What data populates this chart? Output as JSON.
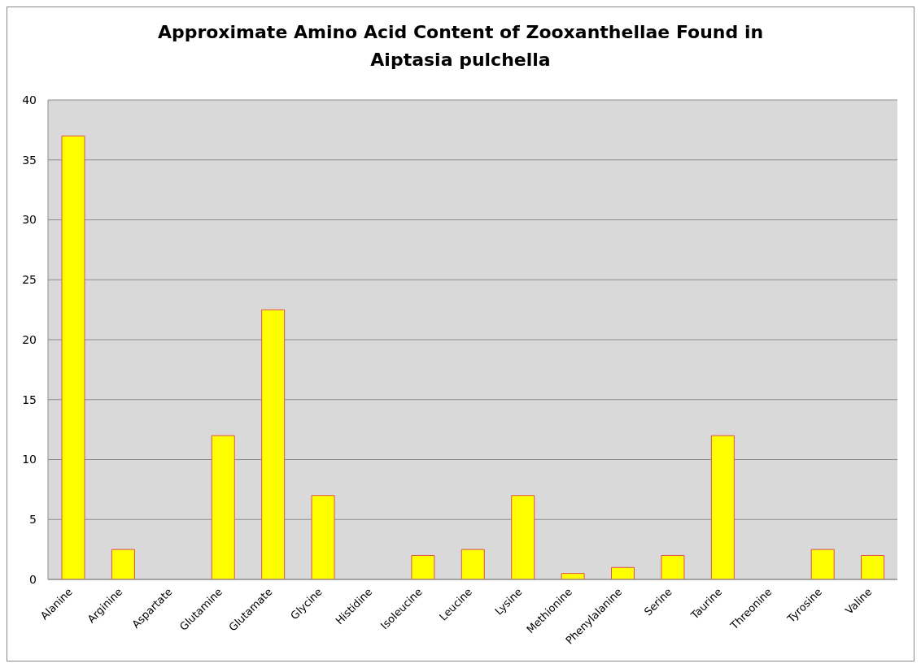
{
  "chart_data": {
    "type": "bar",
    "title": "Approximate Amino Acid Content of Zooxanthellae Found in Aiptasia pulchella",
    "categories": [
      "Alanine",
      "Arginine",
      "Aspartate",
      "Glutamine",
      "Glutamate",
      "Glycine",
      "Histidine",
      "Isoleucine",
      "Leucine",
      "Lysine",
      "Methionine",
      "Phenylalanine",
      "Serine",
      "Taurine",
      "Threonine",
      "Tyrosine",
      "Valine"
    ],
    "values": [
      37,
      2.5,
      0,
      12,
      22.5,
      7,
      0,
      2,
      2.5,
      7,
      0.5,
      1,
      2,
      12,
      0,
      2.5,
      2
    ],
    "color": "#ffff00",
    "ylim": [
      0,
      40
    ],
    "yticks": [
      0,
      5,
      10,
      15,
      20,
      25,
      30,
      35,
      40
    ],
    "grid": "y"
  }
}
